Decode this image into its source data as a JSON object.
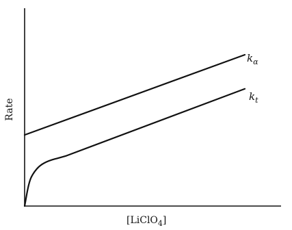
{
  "chart_data": {
    "type": "line",
    "xlabel": "[LiClO",
    "xlabel_subscript": "4",
    "xlabel_close": "]",
    "ylabel": "Rate",
    "grid": false,
    "axis_ticks": false,
    "series": [
      {
        "name_main": "k",
        "name_subscript": "α",
        "x": [
          0,
          1
        ],
        "y": [
          0.47,
          1
        ]
      },
      {
        "name_main": "k",
        "name_subscript": "t",
        "x": [
          0,
          0.02,
          0.04,
          0.07,
          0.11,
          0.16,
          0.22,
          1
        ],
        "y": [
          0,
          0.16,
          0.22,
          0.27,
          0.3,
          0.32,
          0.345,
          0.775
        ]
      }
    ]
  }
}
